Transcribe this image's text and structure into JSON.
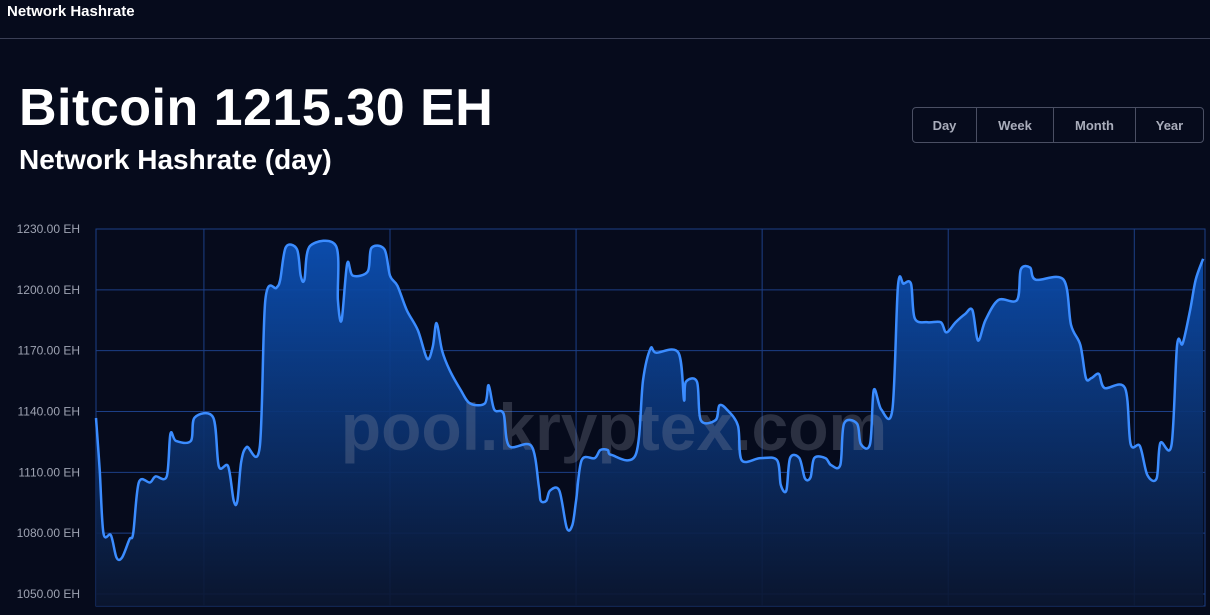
{
  "header": {
    "title": "Network Hashrate"
  },
  "hero": {
    "title": "Bitcoin 1215.30 EH",
    "subtitle": "Network Hashrate (day)"
  },
  "range_buttons": [
    {
      "label": "Day"
    },
    {
      "label": "Week"
    },
    {
      "label": "Month"
    },
    {
      "label": "Year"
    }
  ],
  "watermark": "pool.kryptex.com",
  "colors": {
    "background": "#060b1c",
    "line": "#3b8cff",
    "fill_top": "#0b4fb3",
    "grid": "#1c3f86"
  },
  "chart_data": {
    "type": "area",
    "title": "",
    "xlabel": "",
    "ylabel": "",
    "ylim": [
      1044,
      1230
    ],
    "y_ticks": [
      "1230.00 EH",
      "1200.00 EH",
      "1170.00 EH",
      "1140.00 EH",
      "1110.00 EH",
      "1080.00 EH",
      "1050.00 EH"
    ],
    "y_tick_values": [
      1230,
      1200,
      1170,
      1140,
      1110,
      1080,
      1050
    ],
    "grid": true,
    "x_unit": "days",
    "series": [
      {
        "points": [
          [
            0,
            1136.8
          ],
          [
            0.02,
            1111
          ],
          [
            0.04,
            1080
          ],
          [
            0.08,
            1079
          ],
          [
            0.11,
            1068
          ],
          [
            0.14,
            1068
          ],
          [
            0.18,
            1077
          ],
          [
            0.2,
            1080
          ],
          [
            0.23,
            1105
          ],
          [
            0.29,
            1105
          ],
          [
            0.32,
            1108
          ],
          [
            0.38,
            1108
          ],
          [
            0.4,
            1129
          ],
          [
            0.43,
            1125.5
          ],
          [
            0.51,
            1125.5
          ],
          [
            0.53,
            1137
          ],
          [
            0.63,
            1137
          ],
          [
            0.66,
            1113
          ],
          [
            0.71,
            1113
          ],
          [
            0.74,
            1096
          ],
          [
            0.76,
            1096
          ],
          [
            0.78,
            1115
          ],
          [
            0.81,
            1122.5
          ],
          [
            0.88,
            1122.5
          ],
          [
            0.91,
            1195
          ],
          [
            0.97,
            1201
          ],
          [
            0.99,
            1205
          ],
          [
            1.02,
            1221
          ],
          [
            1.08,
            1220
          ],
          [
            1.1,
            1207
          ],
          [
            1.12,
            1205
          ],
          [
            1.15,
            1221.6
          ],
          [
            1.29,
            1221.6
          ],
          [
            1.3,
            1195
          ],
          [
            1.32,
            1185
          ],
          [
            1.35,
            1213
          ],
          [
            1.38,
            1207
          ],
          [
            1.46,
            1209
          ],
          [
            1.48,
            1220.6
          ],
          [
            1.55,
            1220
          ],
          [
            1.58,
            1207
          ],
          [
            1.62,
            1202
          ],
          [
            1.67,
            1190
          ],
          [
            1.73,
            1180
          ],
          [
            1.78,
            1166
          ],
          [
            1.81,
            1172
          ],
          [
            1.83,
            1183.6
          ],
          [
            1.86,
            1170
          ],
          [
            1.9,
            1160.5
          ],
          [
            1.96,
            1150.6
          ],
          [
            2.01,
            1144
          ],
          [
            2.09,
            1144
          ],
          [
            2.11,
            1153
          ],
          [
            2.14,
            1141
          ],
          [
            2.19,
            1139
          ],
          [
            2.22,
            1123
          ],
          [
            2.34,
            1123
          ],
          [
            2.38,
            1103
          ],
          [
            2.39,
            1096
          ],
          [
            2.42,
            1096
          ],
          [
            2.44,
            1101
          ],
          [
            2.49,
            1101
          ],
          [
            2.53,
            1082.6
          ],
          [
            2.56,
            1084
          ],
          [
            2.58,
            1096
          ],
          [
            2.61,
            1116
          ],
          [
            2.68,
            1117
          ],
          [
            2.71,
            1121
          ],
          [
            2.75,
            1121
          ],
          [
            2.77,
            1118.6
          ],
          [
            2.9,
            1118.6
          ],
          [
            2.94,
            1155.5
          ],
          [
            2.98,
            1171
          ],
          [
            3.01,
            1169
          ],
          [
            3.13,
            1169
          ],
          [
            3.16,
            1145.7
          ],
          [
            3.17,
            1154.6
          ],
          [
            3.23,
            1154.6
          ],
          [
            3.25,
            1135.8
          ],
          [
            3.33,
            1135.8
          ],
          [
            3.35,
            1143
          ],
          [
            3.39,
            1141
          ],
          [
            3.45,
            1133
          ],
          [
            3.47,
            1116
          ],
          [
            3.57,
            1117
          ],
          [
            3.66,
            1116
          ],
          [
            3.68,
            1103.8
          ],
          [
            3.71,
            1101
          ],
          [
            3.73,
            1117
          ],
          [
            3.78,
            1117
          ],
          [
            3.81,
            1107
          ],
          [
            3.84,
            1107.5
          ],
          [
            3.86,
            1117
          ],
          [
            3.92,
            1117
          ],
          [
            3.95,
            1113.6
          ],
          [
            4.0,
            1113.6
          ],
          [
            4.02,
            1134
          ],
          [
            4.09,
            1134
          ],
          [
            4.11,
            1124
          ],
          [
            4.16,
            1124
          ],
          [
            4.18,
            1150.6
          ],
          [
            4.22,
            1141
          ],
          [
            4.28,
            1141
          ],
          [
            4.31,
            1202
          ],
          [
            4.34,
            1203
          ],
          [
            4.38,
            1203
          ],
          [
            4.4,
            1186
          ],
          [
            4.47,
            1184
          ],
          [
            4.54,
            1184
          ],
          [
            4.57,
            1179
          ],
          [
            4.62,
            1184
          ],
          [
            4.67,
            1188
          ],
          [
            4.71,
            1190
          ],
          [
            4.74,
            1175
          ],
          [
            4.78,
            1185
          ],
          [
            4.85,
            1195
          ],
          [
            4.95,
            1195
          ],
          [
            4.97,
            1210
          ],
          [
            5.02,
            1211
          ],
          [
            5.05,
            1205
          ],
          [
            5.2,
            1205
          ],
          [
            5.24,
            1182.7
          ],
          [
            5.29,
            1172.8
          ],
          [
            5.32,
            1156.5
          ],
          [
            5.35,
            1156.5
          ],
          [
            5.39,
            1158.5
          ],
          [
            5.42,
            1151.6
          ],
          [
            5.53,
            1151.6
          ],
          [
            5.56,
            1124
          ],
          [
            5.61,
            1123
          ],
          [
            5.65,
            1108.7
          ],
          [
            5.7,
            1107
          ],
          [
            5.72,
            1124.5
          ],
          [
            5.78,
            1123.5
          ],
          [
            5.81,
            1172.8
          ],
          [
            5.84,
            1173.5
          ],
          [
            5.88,
            1190
          ],
          [
            5.91,
            1205
          ],
          [
            5.95,
            1215.3
          ]
        ]
      }
    ],
    "xlim": [
      0,
      5.96
    ]
  }
}
